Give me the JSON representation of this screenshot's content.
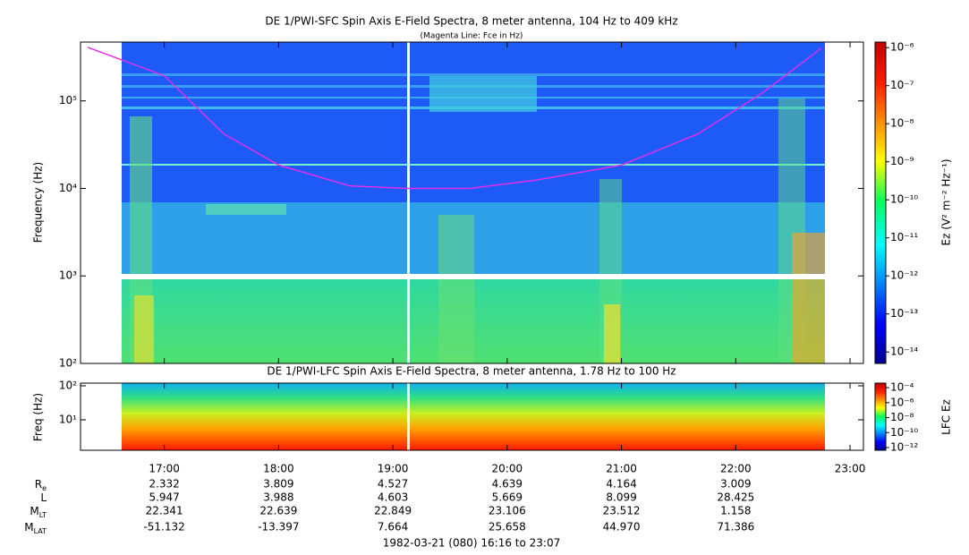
{
  "chart_data": [
    {
      "type": "spectrogram",
      "title": "DE 1/PWI-SFC  Spin Axis E-Field Spectra, 8 meter antenna, 104 Hz to 409 kHz",
      "subtitle": "(Magenta Line: Fce in Hz)",
      "y_label": "Frequency (Hz)",
      "log_y": true,
      "xlim": [
        16.267,
        23.117
      ],
      "xticks": [
        17,
        18,
        19,
        20,
        21,
        22,
        23
      ],
      "ylim": [
        100,
        470000
      ],
      "yticks": [
        {
          "value": 100,
          "label": "10²"
        },
        {
          "value": 1000,
          "label": "10³"
        },
        {
          "value": 10000,
          "label": "10⁴"
        },
        {
          "value": 100000,
          "label": "10⁵"
        }
      ],
      "series": [
        {
          "color": "#e030e8",
          "x": [
            16.33,
            17.0,
            17.52,
            18.0,
            18.62,
            19.12,
            19.67,
            20.25,
            21.0,
            21.67,
            22.22,
            22.75
          ],
          "values": [
            410000,
            194000,
            42000,
            18500,
            10700,
            10000,
            10000,
            12400,
            18500,
            42000,
            120000,
            400000
          ]
        }
      ],
      "colorbar": {
        "label": "Ez (V² m⁻² Hz⁻¹)",
        "log": true,
        "lim": [
          5e-15,
          1.4e-06
        ],
        "ticks": [
          {
            "value": 1e-06,
            "label": "10⁻⁶"
          },
          {
            "value": 1e-07,
            "label": "10⁻⁷"
          },
          {
            "value": 1e-08,
            "label": "10⁻⁸"
          },
          {
            "value": 1e-09,
            "label": "10⁻⁹"
          },
          {
            "value": 1e-10,
            "label": "10⁻¹⁰"
          },
          {
            "value": 1e-11,
            "label": "10⁻¹¹"
          },
          {
            "value": 1e-12,
            "label": "10⁻¹²"
          },
          {
            "value": 1e-13,
            "label": "10⁻¹³"
          },
          {
            "value": 1e-14,
            "label": "10⁻¹⁴"
          }
        ]
      }
    },
    {
      "type": "spectrogram",
      "title": "DE 1/PWI-LFC  Spin Axis E-Field Spectra, 8 meter antenna, 1.78 Hz to 100 Hz",
      "y_label": "Freq (Hz)",
      "log_y": true,
      "xlim": [
        16.267,
        23.117
      ],
      "xticks": [
        {
          "value": 17,
          "label": "17:00"
        },
        {
          "value": 18,
          "label": "18:00"
        },
        {
          "value": 19,
          "label": "19:00"
        },
        {
          "value": 20,
          "label": "20:00"
        },
        {
          "value": 21,
          "label": "21:00"
        },
        {
          "value": 22,
          "label": "22:00"
        },
        {
          "value": 23,
          "label": "23:00"
        }
      ],
      "ylim": [
        1.27,
        120
      ],
      "yticks": [
        {
          "value": 10,
          "label": "10¹"
        },
        {
          "value": 100,
          "label": "10²"
        }
      ],
      "colorbar": {
        "label": "LFC Ez",
        "log": true,
        "lim": [
          4.4e-13,
          0.0004
        ],
        "ticks": [
          {
            "value": 0.0001,
            "label": "10⁻⁴"
          },
          {
            "value": 1e-06,
            "label": "10⁻⁶"
          },
          {
            "value": 1e-08,
            "label": "10⁻⁸"
          },
          {
            "value": 1e-10,
            "label": "10⁻¹⁰"
          },
          {
            "value": 1e-12,
            "label": "10⁻¹²"
          }
        ]
      }
    }
  ],
  "ephemeris": {
    "rows": [
      {
        "label": {
          "main": "R",
          "sub": "e"
        },
        "values": [
          "2.332",
          "3.809",
          "4.527",
          "4.639",
          "4.164",
          "3.009"
        ]
      },
      {
        "label": {
          "main": "L"
        },
        "values": [
          "5.947",
          "3.988",
          "4.603",
          "5.669",
          "8.099",
          "28.425"
        ]
      },
      {
        "label": {
          "main": "M",
          "sub": "LT"
        },
        "values": [
          "22.341",
          "22.639",
          "22.849",
          "23.106",
          "23.512",
          "1.158"
        ]
      },
      {
        "label": {
          "main": "M",
          "sub": "LAT"
        },
        "values": [
          "-51.132",
          "-13.397",
          "7.664",
          "25.658",
          "44.970",
          "71.386"
        ]
      }
    ]
  },
  "footer": "1982-03-21 (080) 16:16 to 23:07"
}
